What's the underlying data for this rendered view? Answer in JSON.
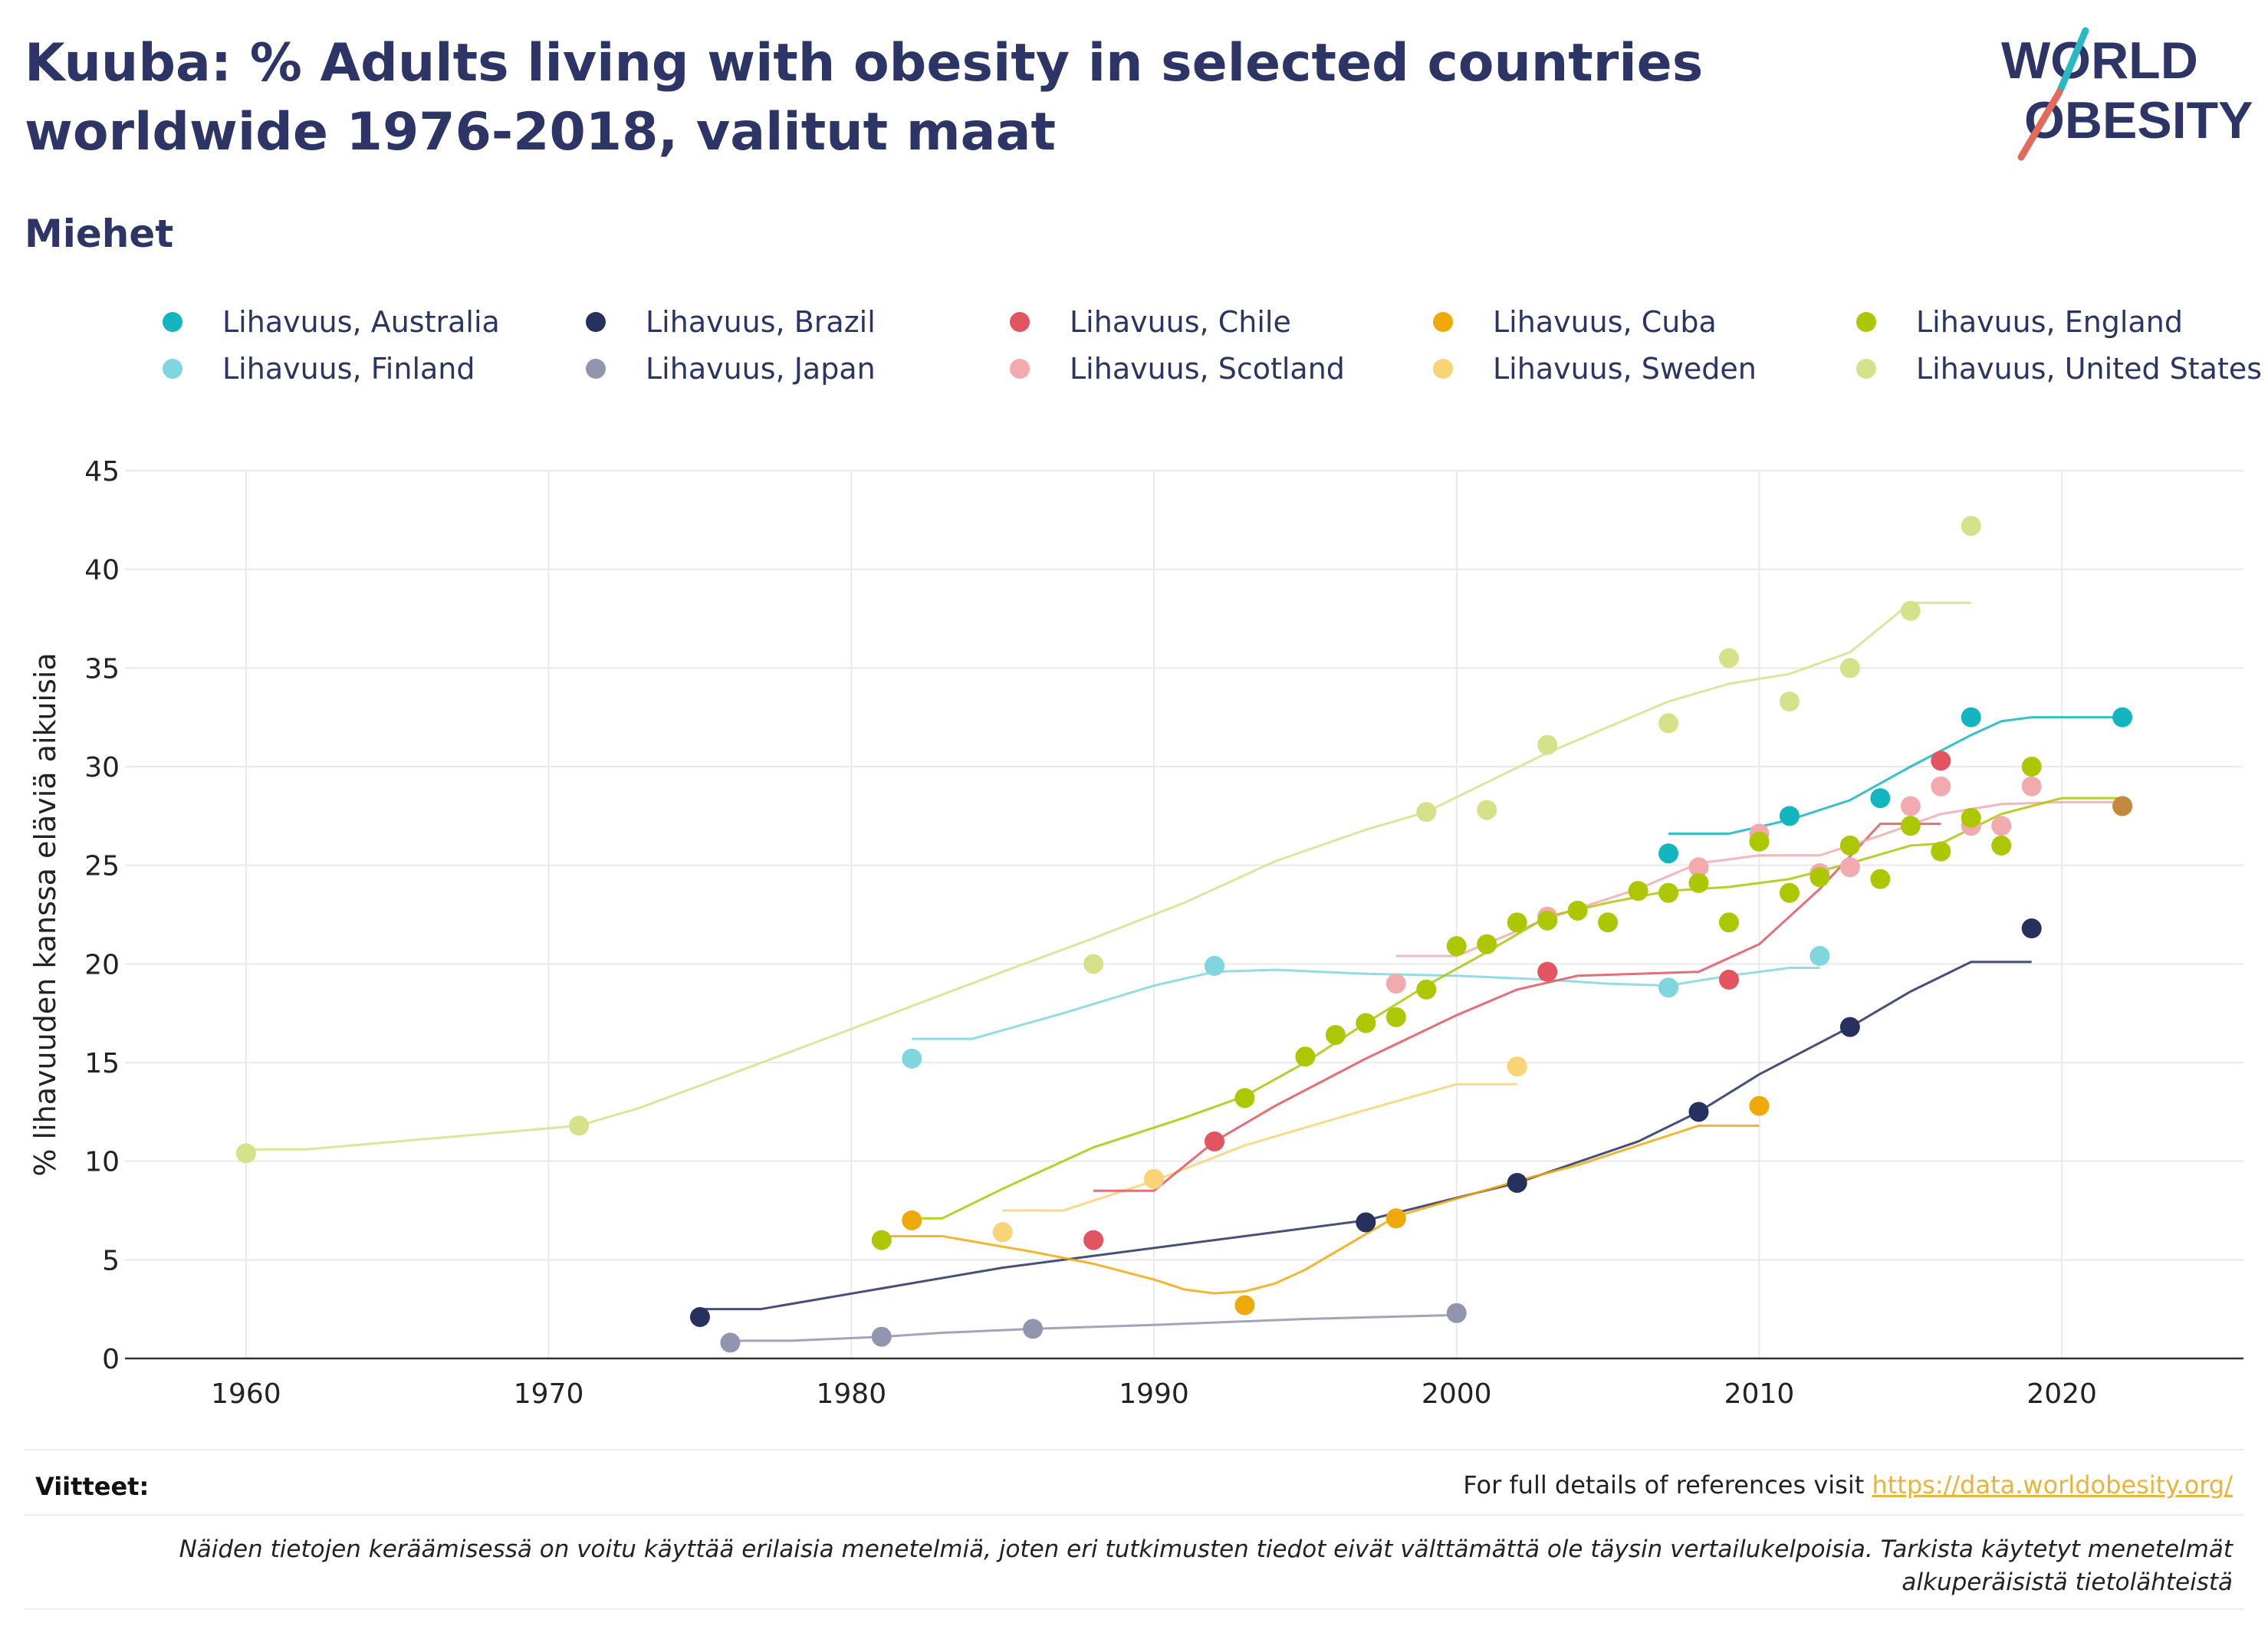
{
  "title": "Kuuba: % Adults living with obesity in selected countries worldwide 1976-2018, valitut maat",
  "subtitle": "Miehet",
  "logo": {
    "line1": "WORLD",
    "line2": "OBESITY"
  },
  "legend": [
    {
      "label": "Lihavuus, Australia",
      "color": "#13b5bf"
    },
    {
      "label": "Lihavuus, Brazil",
      "color": "#27315e"
    },
    {
      "label": "Lihavuus, Chile",
      "color": "#e25560"
    },
    {
      "label": "Lihavuus, Cuba",
      "color": "#f0a90a"
    },
    {
      "label": "Lihavuus, England",
      "color": "#adc704"
    },
    {
      "label": "Lihavuus, Finland",
      "color": "#7fd6de"
    },
    {
      "label": "Lihavuus, Japan",
      "color": "#9195ad"
    },
    {
      "label": "Lihavuus, Scotland",
      "color": "#f3aaae"
    },
    {
      "label": "Lihavuus, Sweden",
      "color": "#f8d477"
    },
    {
      "label": "Lihavuus, United States",
      "color": "#d6e28a"
    }
  ],
  "footer": {
    "references_label": "Viitteet:",
    "references_text": "For full details of references visit ",
    "references_link": "https://data.worldobesity.org/",
    "note": "Näiden tietojen keräämisessä on voitu käyttää erilaisia menetelmiä, joten eri tutkimusten tiedot eivät välttämättä ole täysin vertailukelpoisia. Tarkista käytetyt menetelmät alkuperäisistä tietolähteistä"
  },
  "chart_data": {
    "type": "scatter",
    "title": "Kuuba: % Adults living with obesity in selected countries worldwide 1976-2018, valitut maat",
    "xlabel": "",
    "ylabel": "% lihavuuden kanssa eläviä aikuisia",
    "xlim": [
      1956,
      2026
    ],
    "ylim": [
      0,
      45
    ],
    "xticks": [
      1960,
      1970,
      1980,
      1990,
      2000,
      2010,
      2020
    ],
    "yticks": [
      0,
      5,
      10,
      15,
      20,
      25,
      30,
      35,
      40,
      45
    ],
    "grid": true,
    "legend_position": "top",
    "series": [
      {
        "name": "Lihavuus, United States",
        "color": "#d6e28a",
        "x": [
          1960,
          1971,
          1988,
          1999,
          2001,
          2003,
          2007,
          2009,
          2011,
          2013,
          2015,
          2017
        ],
        "y": [
          10.4,
          11.8,
          20.0,
          27.7,
          27.8,
          31.1,
          32.2,
          35.5,
          33.3,
          35.0,
          37.9,
          42.2
        ],
        "trend_x": [
          1960,
          1962,
          1965,
          1968,
          1971,
          1973,
          1976,
          1980,
          1985,
          1988,
          1991,
          1994,
          1997,
          1999,
          2001,
          2003,
          2005,
          2007,
          2009,
          2011,
          2013,
          2015,
          2017
        ],
        "trend_y": [
          10.6,
          10.6,
          11.0,
          11.4,
          11.8,
          12.7,
          14.4,
          16.7,
          19.6,
          21.3,
          23.1,
          25.2,
          26.8,
          27.7,
          29.2,
          30.7,
          32.0,
          33.3,
          34.2,
          34.7,
          35.8,
          38.3,
          38.3
        ]
      },
      {
        "name": "Lihavuus, Finland",
        "color": "#7fd6de",
        "x": [
          1982,
          1992,
          2007,
          2012
        ],
        "y": [
          15.2,
          19.9,
          18.8,
          20.4
        ],
        "trend_x": [
          1982,
          1984,
          1987,
          1990,
          1992,
          1994,
          1997,
          2000,
          2003,
          2005,
          2007,
          2009,
          2011,
          2012
        ],
        "trend_y": [
          16.2,
          16.2,
          17.5,
          18.9,
          19.6,
          19.7,
          19.5,
          19.4,
          19.2,
          19.0,
          18.9,
          19.4,
          19.8,
          19.8
        ]
      },
      {
        "name": "Lihavuus, Japan",
        "color": "#9195ad",
        "x": [
          1976,
          1981,
          1986,
          2000
        ],
        "y": [
          0.8,
          1.1,
          1.5,
          2.3
        ],
        "trend_x": [
          1976,
          1978,
          1981,
          1983,
          1986,
          1990,
          1995,
          2000
        ],
        "trend_y": [
          0.9,
          0.9,
          1.1,
          1.3,
          1.5,
          1.7,
          2.0,
          2.2
        ]
      },
      {
        "name": "Lihavuus, Brazil",
        "color": "#27315e",
        "x": [
          1975,
          1997,
          2002,
          2008,
          2013,
          2019
        ],
        "y": [
          2.1,
          6.9,
          8.9,
          12.5,
          16.8,
          21.8
        ],
        "trend_x": [
          1975,
          1977,
          1985,
          1997,
          2002,
          2006,
          2008,
          2010,
          2013,
          2015,
          2017,
          2019
        ],
        "trend_y": [
          2.5,
          2.5,
          4.6,
          7.0,
          8.9,
          11.0,
          12.5,
          14.4,
          16.8,
          18.6,
          20.1,
          20.1
        ]
      },
      {
        "name": "Lihavuus, Sweden",
        "color": "#f8d477",
        "x": [
          1985,
          1990,
          2002
        ],
        "y": [
          6.4,
          9.1,
          14.8
        ],
        "trend_x": [
          1985,
          1987,
          1990,
          1993,
          1997,
          2000,
          2002
        ],
        "trend_y": [
          7.5,
          7.5,
          9.0,
          10.8,
          12.6,
          13.9,
          13.9
        ]
      },
      {
        "name": "Lihavuus, Cuba",
        "color": "#f0a90a",
        "x": [
          1982,
          1993,
          1998,
          2010
        ],
        "y": [
          7.0,
          2.7,
          7.1,
          12.8
        ],
        "trend_x": [
          1981,
          1983,
          1986,
          1988,
          1990,
          1991,
          1992,
          1993,
          1994,
          1995,
          1997,
          1998,
          2000,
          2002,
          2004,
          2006,
          2008,
          2010
        ],
        "trend_y": [
          6.2,
          6.2,
          5.4,
          4.8,
          4.0,
          3.5,
          3.3,
          3.4,
          3.8,
          4.5,
          6.3,
          7.2,
          8.1,
          9.0,
          9.8,
          10.8,
          11.8,
          11.8
        ]
      },
      {
        "name": "Lihavuus, Chile",
        "color": "#e25560",
        "x": [
          1988,
          1992,
          2003,
          2009,
          2016
        ],
        "y": [
          6.0,
          11.0,
          19.6,
          19.2,
          30.3
        ],
        "trend_x": [
          1988,
          1990,
          1992,
          1994,
          1997,
          2000,
          2002,
          2004,
          2006,
          2008,
          2010,
          2012,
          2014,
          2016
        ],
        "trend_y": [
          8.5,
          8.5,
          11.0,
          12.8,
          15.2,
          17.4,
          18.7,
          19.4,
          19.5,
          19.6,
          21.0,
          23.8,
          27.1,
          27.1
        ]
      },
      {
        "name": "Lihavuus, Scotland",
        "color": "#f3aaae",
        "x": [
          1998,
          2003,
          2008,
          2010,
          2012,
          2013,
          2015,
          2016,
          2017,
          2018,
          2019
        ],
        "y": [
          19.0,
          22.4,
          24.9,
          26.6,
          24.6,
          24.9,
          28.0,
          29.0,
          27.0,
          27.0,
          29.0
        ],
        "trend_x": [
          1998,
          2000,
          2003,
          2006,
          2008,
          2010,
          2012,
          2014,
          2016,
          2018,
          2020,
          2022
        ],
        "trend_y": [
          20.4,
          20.4,
          22.3,
          23.8,
          25.1,
          25.5,
          25.5,
          26.5,
          27.6,
          28.1,
          28.2,
          28.2
        ]
      },
      {
        "name": "Lihavuus, England",
        "color": "#adc704",
        "x": [
          1981,
          1993,
          1995,
          1996,
          1997,
          1998,
          1999,
          2000,
          2001,
          2002,
          2003,
          2004,
          2005,
          2006,
          2007,
          2008,
          2009,
          2010,
          2011,
          2012,
          2013,
          2014,
          2015,
          2016,
          2017,
          2018,
          2019,
          2022
        ],
        "y": [
          6.0,
          13.2,
          15.3,
          16.4,
          17.0,
          17.3,
          18.7,
          20.9,
          21.0,
          22.1,
          22.2,
          22.7,
          22.1,
          23.7,
          23.6,
          24.1,
          22.1,
          26.2,
          23.6,
          24.4,
          26.0,
          24.3,
          27.0,
          25.7,
          27.4,
          26.0,
          30.0,
          28.0
        ],
        "trend_x": [
          1982,
          1983,
          1985,
          1988,
          1991,
          1993,
          1995,
          1997,
          1999,
          2001,
          2003,
          2005,
          2007,
          2009,
          2011,
          2013,
          2015,
          2016,
          2018,
          2020,
          2022
        ],
        "trend_y": [
          7.1,
          7.1,
          8.6,
          10.7,
          12.2,
          13.3,
          15.0,
          17.0,
          18.9,
          20.6,
          22.4,
          23.1,
          23.7,
          23.9,
          24.3,
          25.1,
          26.0,
          26.1,
          27.6,
          28.4,
          28.4
        ]
      },
      {
        "name": "Lihavuus, Australia",
        "color": "#13b5bf",
        "x": [
          2007,
          2011,
          2014,
          2017,
          2022
        ],
        "y": [
          25.6,
          27.5,
          28.4,
          32.5,
          32.5
        ],
        "trend_x": [
          2007,
          2009,
          2011,
          2013,
          2015,
          2017,
          2018,
          2019,
          2020,
          2022
        ],
        "trend_y": [
          26.6,
          26.6,
          27.3,
          28.3,
          30.0,
          31.6,
          32.3,
          32.5,
          32.5,
          32.5
        ]
      },
      {
        "name": "Lihavuus, Cuba",
        "color": "#c28a3a",
        "x": [
          2022
        ],
        "y": [
          28.0
        ],
        "trend_x": [],
        "trend_y": []
      }
    ]
  }
}
